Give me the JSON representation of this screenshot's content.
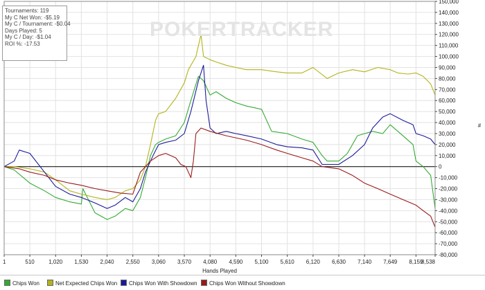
{
  "app": {
    "watermark": "POKERTRACKER"
  },
  "stats": [
    "Tournaments: 119",
    "My C Net Won: -$5.19",
    "My C / Tournament: -$0.04",
    "Days Played: 5",
    "My C / Day: -$1.04",
    "ROI %: -17.53"
  ],
  "chart_data": {
    "type": "line",
    "title": "",
    "xlabel": "Hands Played",
    "ylabel": "",
    "y_unit_label": "#",
    "xlim": [
      1,
      8538
    ],
    "ylim": [
      -80000,
      150000
    ],
    "x_ticks": [
      1,
      510,
      1020,
      1530,
      2040,
      2550,
      3060,
      3570,
      4080,
      4590,
      5100,
      5610,
      6120,
      6630,
      7140,
      7649,
      8159,
      8538
    ],
    "x_tick_labels": [
      "1",
      "510",
      "1,020",
      "1,530",
      "2,040",
      "2,550",
      "3,060",
      "3,570",
      "4,080",
      "4,590",
      "5,100",
      "5,610",
      "6,120",
      "6,630",
      "7,140",
      "7,649",
      "8,159",
      "8,538"
    ],
    "y_ticks": [
      150000,
      140000,
      130000,
      120000,
      110000,
      100000,
      90000,
      80000,
      70000,
      60000,
      50000,
      40000,
      30000,
      20000,
      10000,
      0,
      -10000,
      -20000,
      -30000,
      -40000,
      -50000,
      -60000,
      -70000,
      -80000
    ],
    "y_tick_labels": [
      "150,000",
      "140,000",
      "130,000",
      "120,000",
      "110,000",
      "100,000",
      "90,000",
      "80,000",
      "70,000",
      "60,000",
      "50,000",
      "40,000",
      "30,000",
      "20,000",
      "10,000",
      "0",
      "-10,000",
      "-20,000",
      "-30,000",
      "-40,000",
      "-50,000",
      "-60,000",
      "-70,000",
      "-80,000"
    ],
    "grid": true,
    "legend_position": "bottom",
    "series": [
      {
        "name": "Chips Won",
        "color": "#33aa33",
        "x": [
          1,
          200,
          510,
          800,
          1020,
          1300,
          1530,
          1560,
          1800,
          2040,
          2200,
          2400,
          2550,
          2700,
          2800,
          2900,
          3000,
          3060,
          3200,
          3400,
          3570,
          3700,
          3850,
          3950,
          4080,
          4200,
          4400,
          4590,
          4800,
          5100,
          5300,
          5610,
          5900,
          6120,
          6300,
          6400,
          6630,
          6800,
          7000,
          7140,
          7300,
          7500,
          7649,
          7900,
          8100,
          8159,
          8300,
          8450,
          8538
        ],
        "y": [
          0,
          -3000,
          -15000,
          -22000,
          -28000,
          -32000,
          -34000,
          -20000,
          -42000,
          -48000,
          -45000,
          -38000,
          -40000,
          -28000,
          -10000,
          10000,
          20000,
          22000,
          25000,
          28000,
          40000,
          60000,
          82000,
          78000,
          65000,
          68000,
          62000,
          58000,
          55000,
          52000,
          32000,
          30000,
          25000,
          22000,
          10000,
          5000,
          5000,
          12000,
          28000,
          30000,
          32000,
          30000,
          38000,
          28000,
          20000,
          5000,
          0,
          -8000,
          -38000
        ]
      },
      {
        "name": "Net Expected Chips Won",
        "color": "#b3b31a",
        "x": [
          1,
          200,
          510,
          800,
          1020,
          1300,
          1530,
          1800,
          2040,
          2200,
          2400,
          2550,
          2700,
          2800,
          2900,
          3000,
          3060,
          3200,
          3400,
          3570,
          3650,
          3800,
          3900,
          3950,
          4080,
          4200,
          4400,
          4590,
          4800,
          5100,
          5400,
          5610,
          5900,
          6120,
          6400,
          6630,
          6900,
          7140,
          7400,
          7649,
          7800,
          8000,
          8159,
          8300,
          8450,
          8538
        ],
        "y": [
          0,
          0,
          -2000,
          -5000,
          -12000,
          -22000,
          -25000,
          -28000,
          -30000,
          -28000,
          -22000,
          -20000,
          -12000,
          0,
          20000,
          42000,
          48000,
          50000,
          62000,
          76000,
          88000,
          100000,
          120000,
          100000,
          97000,
          95000,
          92000,
          90000,
          88000,
          88000,
          86000,
          85000,
          85000,
          90000,
          80000,
          85000,
          88000,
          86000,
          90000,
          88000,
          85000,
          84000,
          85000,
          82000,
          75000,
          65000
        ]
      },
      {
        "name": "Chips Won With Showdown",
        "color": "#1a1a99",
        "x": [
          1,
          200,
          300,
          510,
          800,
          1020,
          1300,
          1530,
          1800,
          2040,
          2200,
          2400,
          2550,
          2700,
          2800,
          2950,
          3060,
          3200,
          3400,
          3570,
          3700,
          3850,
          3950,
          4000,
          4080,
          4200,
          4400,
          4590,
          4800,
          5100,
          5400,
          5610,
          5900,
          6120,
          6300,
          6630,
          6900,
          7140,
          7300,
          7500,
          7649,
          7900,
          8100,
          8159,
          8300,
          8450,
          8538
        ],
        "y": [
          0,
          5000,
          15000,
          12000,
          -5000,
          -18000,
          -25000,
          -28000,
          -33000,
          -38000,
          -35000,
          -28000,
          -32000,
          -20000,
          -5000,
          10000,
          20000,
          22000,
          24000,
          30000,
          50000,
          78000,
          92000,
          60000,
          35000,
          30000,
          32000,
          30000,
          28000,
          25000,
          20000,
          18000,
          17000,
          15000,
          2000,
          2000,
          10000,
          20000,
          35000,
          45000,
          48000,
          42000,
          38000,
          30000,
          28000,
          25000,
          20000
        ]
      },
      {
        "name": "Chips Won Without Showdown",
        "color": "#991a1a",
        "x": [
          1,
          300,
          510,
          800,
          1020,
          1300,
          1530,
          1800,
          2040,
          2300,
          2550,
          2700,
          2900,
          3060,
          3200,
          3400,
          3500,
          3600,
          3700,
          3750,
          3800,
          3900,
          4080,
          4400,
          4800,
          5100,
          5400,
          5610,
          5900,
          6120,
          6300,
          6630,
          6900,
          7140,
          7400,
          7649,
          7900,
          8159,
          8300,
          8450,
          8538
        ],
        "y": [
          0,
          -2000,
          -5000,
          -8000,
          -12000,
          -15000,
          -17000,
          -20000,
          -22000,
          -24000,
          -25000,
          -5000,
          5000,
          10000,
          12000,
          8000,
          2000,
          0,
          -10000,
          5000,
          30000,
          35000,
          32000,
          28000,
          24000,
          20000,
          15000,
          12000,
          8000,
          5000,
          0,
          -2000,
          -8000,
          -15000,
          -20000,
          -25000,
          -30000,
          -35000,
          -40000,
          -45000,
          -55000
        ]
      }
    ]
  }
}
